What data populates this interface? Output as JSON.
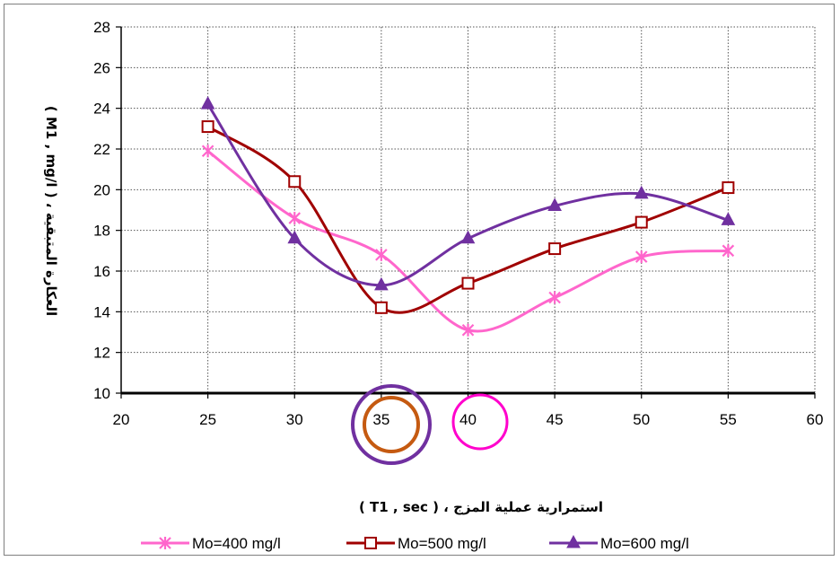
{
  "chart_data": {
    "type": "line",
    "x": [
      25,
      30,
      35,
      40,
      45,
      50,
      55
    ],
    "xlim": [
      20,
      60
    ],
    "xticks": [
      "20",
      "25",
      "30",
      "35",
      "40",
      "45",
      "50",
      "55",
      "60"
    ],
    "ylim": [
      10,
      28
    ],
    "yticks": [
      "10",
      "12",
      "14",
      "16",
      "18",
      "20",
      "22",
      "24",
      "26",
      "28"
    ],
    "xlabel": "استمرارية عملية المزج ، ( T1 , sec )",
    "ylabel": "العكارة المتبقية ، ( M1 , mg/l )",
    "grid": true,
    "legend_position": "bottom",
    "series": [
      {
        "name": "Mo=400 mg/l",
        "color": "#ff66cc",
        "marker": "x-star",
        "values": [
          21.9,
          18.6,
          16.8,
          13.1,
          14.7,
          16.7,
          17.0
        ]
      },
      {
        "name": "Mo=500 mg/l",
        "color": "#a00000",
        "marker": "open-square",
        "values": [
          23.1,
          20.4,
          14.2,
          15.4,
          17.1,
          18.4,
          20.1
        ]
      },
      {
        "name": "Mo=600 mg/l",
        "color": "#7030a0",
        "marker": "triangle",
        "values": [
          24.2,
          17.6,
          15.3,
          17.6,
          19.2,
          19.8,
          18.5
        ]
      }
    ],
    "annotations": [
      {
        "shape": "circle",
        "color": "#7030a0",
        "at_x": 36
      },
      {
        "shape": "circle",
        "color": "#c55a11",
        "at_x": 36
      },
      {
        "shape": "circle",
        "color": "#ff00cc",
        "at_x": 40.5
      }
    ]
  }
}
